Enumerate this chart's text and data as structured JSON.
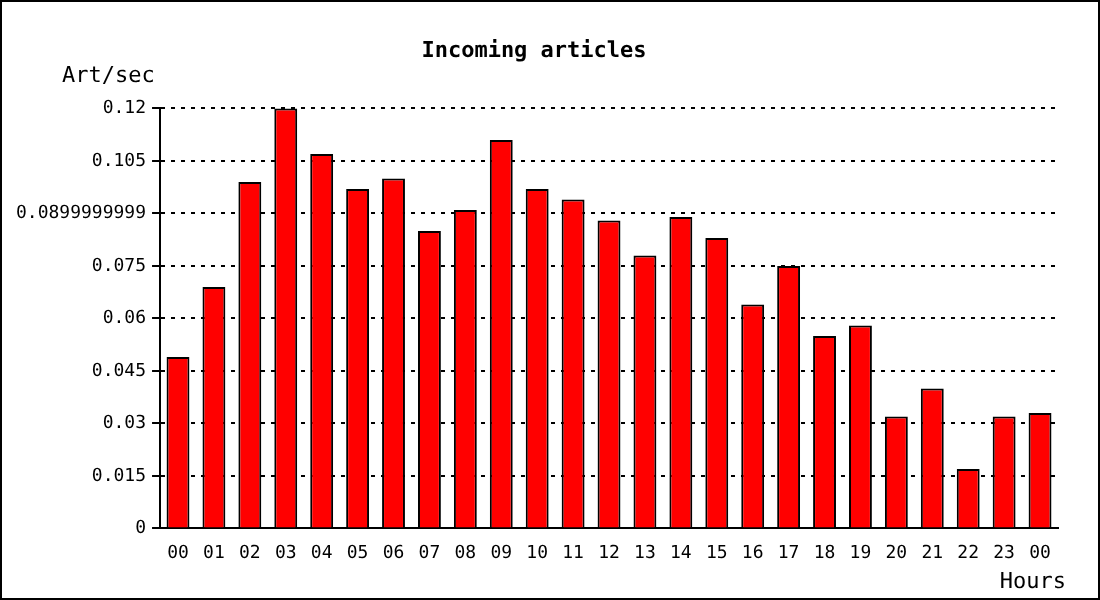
{
  "chart_data": {
    "type": "bar",
    "title": "Incoming articles",
    "xlabel": "Hours",
    "ylabel": "Art/sec",
    "categories": [
      "00",
      "01",
      "02",
      "03",
      "04",
      "05",
      "06",
      "07",
      "08",
      "09",
      "10",
      "11",
      "12",
      "13",
      "14",
      "15",
      "16",
      "17",
      "18",
      "19",
      "20",
      "21",
      "22",
      "23",
      "00"
    ],
    "values": [
      0.049,
      0.069,
      0.099,
      0.12,
      0.107,
      0.097,
      0.1,
      0.085,
      0.091,
      0.111,
      0.097,
      0.094,
      0.088,
      0.078,
      0.089,
      0.083,
      0.064,
      0.075,
      0.055,
      0.058,
      0.032,
      0.04,
      0.017,
      0.032,
      0.033
    ],
    "color": "#ff0000",
    "ylim": [
      0,
      0.12
    ],
    "yticks": [
      0,
      0.015,
      0.03,
      0.045,
      0.06,
      0.075,
      0.0899999999,
      0.105,
      0.12
    ],
    "grid": "y",
    "line_style": "dotted",
    "legend": false
  }
}
